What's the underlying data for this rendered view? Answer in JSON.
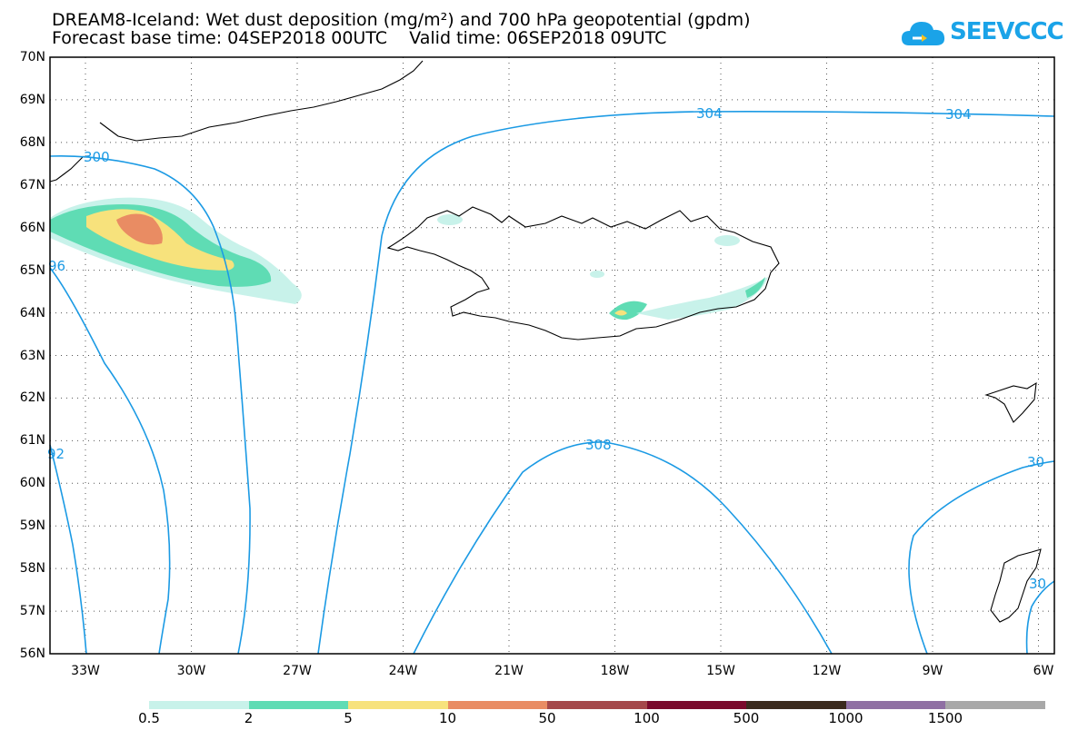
{
  "header": {
    "title_line1": "DREAM8-Iceland: Wet dust deposition (mg/m²) and 700 hPa geopotential (gpdm)",
    "title_line2": "Forecast base time: 04SEP2018 00UTC    Valid time: 06SEP2018 09UTC",
    "logo_text": "SEEVCCC"
  },
  "axes": {
    "lat_labels": [
      "70N",
      "69N",
      "68N",
      "67N",
      "66N",
      "65N",
      "64N",
      "63N",
      "62N",
      "61N",
      "60N",
      "59N",
      "58N",
      "57N",
      "56N"
    ],
    "lon_labels": [
      "33W",
      "30W",
      "27W",
      "24W",
      "21W",
      "18W",
      "15W",
      "12W",
      "9W",
      "6W"
    ]
  },
  "contours": {
    "labels": [
      "300",
      "96",
      "92",
      "304",
      "304",
      "308",
      "30",
      "30"
    ]
  },
  "legend": {
    "colors": [
      "#c8f2ea",
      "#5fdcb4",
      "#f7e27c",
      "#e98c63",
      "#a5484a",
      "#7a0a2c",
      "#3b2a1e",
      "#8f70a3",
      "#a8a8a8"
    ],
    "labels": [
      "0.5",
      "2",
      "5",
      "10",
      "50",
      "100",
      "500",
      "1000",
      "1500"
    ]
  }
}
